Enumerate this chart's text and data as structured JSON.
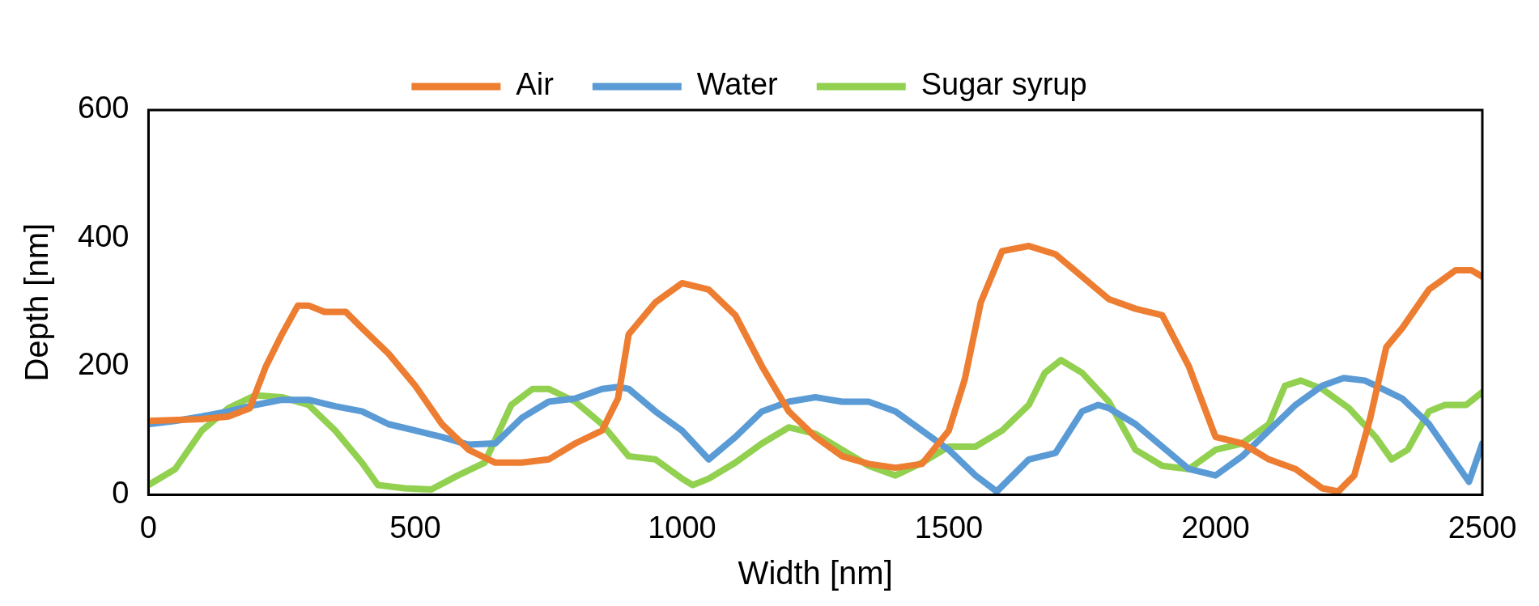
{
  "chart_data": {
    "type": "line",
    "xlabel": "Width [nm]",
    "ylabel": "Depth [nm]",
    "xlim": [
      0,
      2500
    ],
    "xticks": [
      0,
      500,
      1000,
      1500,
      2000,
      2500
    ],
    "ylim": [
      0,
      600
    ],
    "yticks": [
      0,
      200,
      400,
      600
    ],
    "legend": "top",
    "marker": "none",
    "line_style": "solid",
    "series": [
      {
        "name": "Air",
        "color": "#ed7d31",
        "x": [
          0,
          100,
          150,
          190,
          220,
          250,
          280,
          300,
          330,
          370,
          400,
          450,
          500,
          550,
          600,
          650,
          700,
          750,
          800,
          850,
          880,
          900,
          950,
          1000,
          1050,
          1100,
          1150,
          1200,
          1250,
          1300,
          1350,
          1400,
          1450,
          1500,
          1530,
          1560,
          1600,
          1650,
          1700,
          1750,
          1800,
          1850,
          1900,
          1950,
          2000,
          2050,
          2100,
          2150,
          2200,
          2230,
          2260,
          2290,
          2320,
          2350,
          2400,
          2450,
          2480,
          2500
        ],
        "values": [
          115,
          118,
          122,
          135,
          200,
          250,
          295,
          295,
          285,
          285,
          260,
          220,
          170,
          110,
          70,
          50,
          50,
          55,
          80,
          100,
          150,
          250,
          300,
          330,
          320,
          280,
          200,
          130,
          90,
          60,
          48,
          42,
          48,
          100,
          180,
          300,
          380,
          388,
          375,
          340,
          305,
          290,
          280,
          200,
          90,
          80,
          55,
          40,
          10,
          5,
          30,
          120,
          230,
          260,
          320,
          350,
          350,
          340
        ]
      },
      {
        "name": "Water",
        "color": "#5b9bd5",
        "x": [
          0,
          50,
          100,
          150,
          200,
          250,
          300,
          350,
          400,
          450,
          500,
          550,
          600,
          650,
          700,
          750,
          800,
          850,
          880,
          900,
          950,
          1000,
          1050,
          1100,
          1150,
          1200,
          1250,
          1300,
          1350,
          1400,
          1450,
          1500,
          1550,
          1590,
          1620,
          1650,
          1700,
          1750,
          1780,
          1800,
          1850,
          1900,
          1950,
          2000,
          2050,
          2100,
          2150,
          2200,
          2240,
          2280,
          2300,
          2350,
          2400,
          2450,
          2475,
          2500
        ],
        "values": [
          110,
          115,
          122,
          130,
          140,
          148,
          148,
          138,
          130,
          110,
          100,
          90,
          78,
          80,
          120,
          145,
          150,
          165,
          168,
          165,
          130,
          100,
          55,
          90,
          130,
          145,
          152,
          145,
          145,
          130,
          100,
          70,
          30,
          5,
          30,
          55,
          65,
          130,
          140,
          135,
          110,
          75,
          40,
          30,
          60,
          100,
          140,
          170,
          182,
          178,
          170,
          150,
          110,
          50,
          20,
          80
        ]
      },
      {
        "name": "Sugar syrup",
        "color": "#92d050",
        "x": [
          0,
          50,
          100,
          150,
          200,
          250,
          300,
          350,
          400,
          430,
          480,
          530,
          580,
          630,
          680,
          720,
          750,
          800,
          850,
          900,
          950,
          1000,
          1020,
          1050,
          1100,
          1150,
          1200,
          1250,
          1300,
          1350,
          1400,
          1450,
          1500,
          1550,
          1600,
          1650,
          1680,
          1710,
          1750,
          1800,
          1850,
          1900,
          1950,
          2000,
          2050,
          2100,
          2130,
          2160,
          2200,
          2250,
          2300,
          2330,
          2360,
          2400,
          2430,
          2470,
          2500
        ],
        "values": [
          15,
          40,
          100,
          135,
          155,
          152,
          140,
          100,
          50,
          15,
          10,
          8,
          30,
          50,
          140,
          165,
          165,
          145,
          110,
          60,
          55,
          25,
          15,
          25,
          50,
          80,
          105,
          95,
          70,
          45,
          30,
          50,
          75,
          75,
          100,
          140,
          190,
          210,
          190,
          145,
          70,
          45,
          40,
          70,
          80,
          110,
          170,
          178,
          165,
          135,
          90,
          55,
          70,
          130,
          140,
          140,
          160
        ]
      }
    ]
  }
}
